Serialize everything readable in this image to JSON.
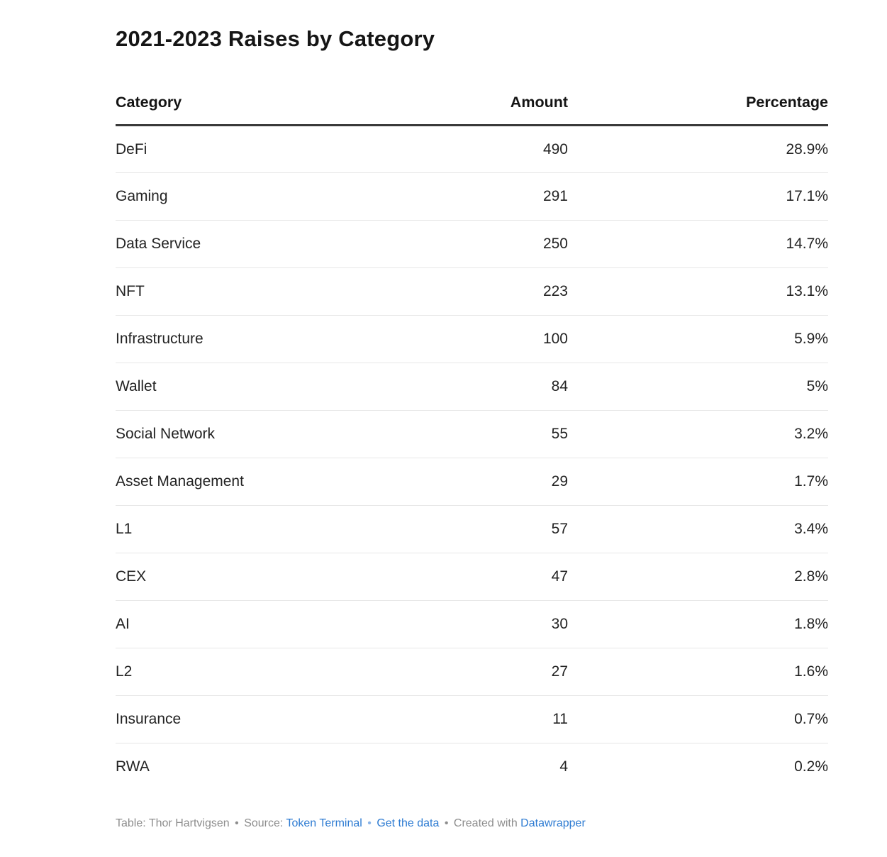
{
  "title": "2021-2023 Raises by Category",
  "chart_data": {
    "type": "table",
    "title": "2021-2023 Raises by Category",
    "columns": [
      "Category",
      "Amount",
      "Percentage"
    ],
    "rows": [
      [
        "DeFi",
        "490",
        "28.9%"
      ],
      [
        "Gaming",
        "291",
        "17.1%"
      ],
      [
        "Data Service",
        "250",
        "14.7%"
      ],
      [
        "NFT",
        "223",
        "13.1%"
      ],
      [
        "Infrastructure",
        "100",
        "5.9%"
      ],
      [
        "Wallet",
        "84",
        "5%"
      ],
      [
        "Social Network",
        "55",
        "3.2%"
      ],
      [
        "Asset Management",
        "29",
        "1.7%"
      ],
      [
        "L1",
        "57",
        "3.4%"
      ],
      [
        "CEX",
        "47",
        "2.8%"
      ],
      [
        "AI",
        "30",
        "1.8%"
      ],
      [
        "L2",
        "27",
        "1.6%"
      ],
      [
        "Insurance",
        "11",
        "0.7%"
      ],
      [
        "RWA",
        "4",
        "0.2%"
      ]
    ]
  },
  "footer": {
    "table_credit": "Table: Thor Hartvigsen",
    "bullet": "•",
    "source_label": "Source:",
    "source_link": "Token Terminal",
    "data_link": "Get the data",
    "created_with": "Created with",
    "tool_link": "Datawrapper"
  },
  "colors": {
    "text": "#232323",
    "header_rule": "#393939",
    "row_separator": "#e7e7e7",
    "footer_gray": "#8d8d8d",
    "link_blue": "#2d7bd2"
  }
}
